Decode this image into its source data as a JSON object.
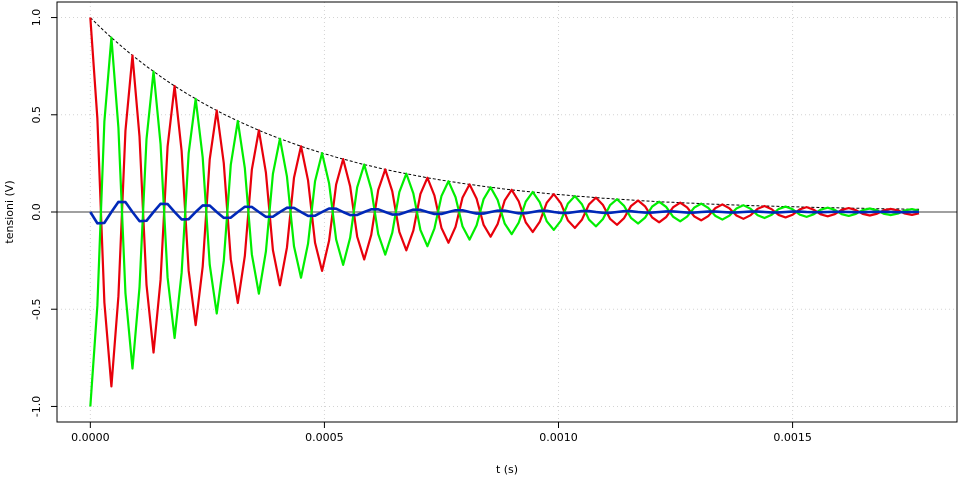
{
  "chart_data": {
    "type": "line",
    "xlabel": "t (s)",
    "ylabel": "tensioni (V)",
    "xlim": [
      -7.12e-05,
      0.0018512
    ],
    "ylim": [
      -1.08,
      1.08
    ],
    "xticks": [
      {
        "value": 0,
        "label": "0.0000"
      },
      0.0005,
      {
        "value": 0.001,
        "label": "0.0010"
      },
      0.0015
    ],
    "yticks": [
      {
        "value": -1,
        "label": "-1.0"
      },
      -0.5,
      {
        "value": 0,
        "label": "0.0"
      },
      0.5,
      {
        "value": 1,
        "label": "1.0"
      }
    ],
    "grid": true,
    "zero_line": true,
    "x": [
      0,
      1.5e-05,
      3e-05,
      4.5e-05,
      6e-05,
      7.5e-05,
      9e-05,
      0.000105,
      0.00012,
      0.000135,
      0.00015,
      0.000165,
      0.00018,
      0.000195,
      0.00021,
      0.000225,
      0.00024,
      0.000255,
      0.00027,
      0.000285,
      0.0003,
      0.000315,
      0.00033,
      0.000345,
      0.00036,
      0.000375,
      0.00039,
      0.000405,
      0.00042,
      0.000435,
      0.00045,
      0.000465,
      0.00048,
      0.000495,
      0.00051,
      0.000525,
      0.00054,
      0.000555,
      0.00057,
      0.000585,
      0.0006,
      0.000615,
      0.00063,
      0.000645,
      0.00066,
      0.000675,
      0.00069,
      0.000705,
      0.00072,
      0.000735,
      0.00075,
      0.000765,
      0.00078,
      0.000795,
      0.00081,
      0.000825,
      0.00084,
      0.000855,
      0.00087,
      0.000885,
      0.0009,
      0.000915,
      0.00093,
      0.000945,
      0.00096,
      0.000975,
      0.00099,
      0.001005,
      0.00102,
      0.001035,
      0.00105,
      0.001065,
      0.00108,
      0.001095,
      0.00111,
      0.001125,
      0.00114,
      0.001155,
      0.00117,
      0.001185,
      0.0012,
      0.001215,
      0.00123,
      0.001245,
      0.00126,
      0.001275,
      0.00129,
      0.001305,
      0.00132,
      0.001335,
      0.00135,
      0.001365,
      0.00138,
      0.001395,
      0.00141,
      0.001425,
      0.00144,
      0.001455,
      0.00147,
      0.001485,
      0.0015,
      0.001515,
      0.00153,
      0.001545,
      0.00156,
      0.001575,
      0.00159,
      0.001605,
      0.00162,
      0.001635,
      0.00165,
      0.001665,
      0.00168,
      0.001695,
      0.00171,
      0.001725,
      0.00174,
      0.001755,
      0.00177
    ],
    "series": [
      {
        "color": "#000000",
        "dash": true,
        "width": 1,
        "values": [
          1,
          0.9645,
          0.93,
          0.897,
          0.866,
          0.835,
          0.805,
          0.777,
          0.749,
          0.723,
          0.697,
          0.672,
          0.648,
          0.625,
          0.603,
          0.582,
          0.561,
          0.541,
          0.522,
          0.503,
          0.486,
          0.468,
          0.452,
          0.436,
          0.42,
          0.405,
          0.391,
          0.377,
          0.364,
          0.351,
          0.338,
          0.326,
          0.315,
          0.303,
          0.293,
          0.282,
          0.272,
          0.263,
          0.253,
          0.244,
          0.236,
          0.227,
          0.219,
          0.211,
          0.204,
          0.197,
          0.19,
          0.183,
          0.176,
          0.17,
          0.164,
          0.158,
          0.153,
          0.147,
          0.142,
          0.137,
          0.132,
          0.127,
          0.123,
          0.118,
          0.114,
          0.11,
          0.106,
          0.103,
          0.099,
          0.095,
          0.092,
          0.089,
          0.086,
          0.082,
          0.08,
          0.077,
          0.074,
          0.071,
          0.069,
          0.066,
          0.064,
          0.062,
          0.059,
          0.057,
          0.055,
          0.053,
          0.051,
          0.05,
          0.048,
          0.046,
          0.045,
          0.043,
          0.041,
          0.04,
          0.039,
          0.037,
          0.036,
          0.035,
          0.033,
          0.032,
          0.031,
          0.03,
          0.029,
          0.028,
          0.027,
          0.026,
          0.025,
          0.024,
          0.023,
          0.022,
          0.022,
          0.021,
          0.02,
          0.019,
          0.019,
          0.018,
          0.017,
          0.017,
          0.016,
          0.016,
          0.015,
          0.015,
          0.014
        ]
      },
      {
        "color": "#e8000b",
        "width": 2.2,
        "values": [
          1,
          0.482,
          -0.465,
          -0.897,
          -0.433,
          0.418,
          0.805,
          0.389,
          -0.375,
          -0.723,
          -0.349,
          0.336,
          0.648,
          0.313,
          -0.302,
          -0.582,
          -0.281,
          0.271,
          0.522,
          0.252,
          -0.243,
          -0.468,
          -0.226,
          0.218,
          0.42,
          0.203,
          -0.196,
          -0.377,
          -0.182,
          0.176,
          0.338,
          0.163,
          -0.158,
          -0.303,
          -0.147,
          0.141,
          0.272,
          0.132,
          -0.127,
          -0.244,
          -0.118,
          0.114,
          0.219,
          0.106,
          -0.102,
          -0.197,
          -0.095,
          0.092,
          0.176,
          0.085,
          -0.082,
          -0.158,
          -0.077,
          0.074,
          0.142,
          0.069,
          -0.066,
          -0.127,
          -0.062,
          0.059,
          0.114,
          0.055,
          -0.053,
          -0.103,
          -0.05,
          0.048,
          0.092,
          0.045,
          -0.043,
          -0.082,
          -0.04,
          0.039,
          0.074,
          0.036,
          -0.035,
          -0.066,
          -0.032,
          0.031,
          0.059,
          0.029,
          -0.028,
          -0.053,
          -0.026,
          0.025,
          0.048,
          0.023,
          -0.023,
          -0.043,
          -0.021,
          0.02,
          0.039,
          0.019,
          -0.018,
          -0.035,
          -0.017,
          0.016,
          0.031,
          0.015,
          -0.015,
          -0.028,
          -0.014,
          0.013,
          0.025,
          0.012,
          -0.012,
          -0.022,
          -0.011,
          0.011,
          0.02,
          0.01,
          -0.01,
          -0.018,
          -0.009,
          0.009,
          0.016,
          0.008,
          -0.008,
          -0.015,
          -0.007
        ]
      },
      {
        "color": "#00ee00",
        "width": 2.2,
        "values": [
          -1,
          -0.482,
          0.465,
          0.897,
          0.433,
          -0.418,
          -0.805,
          -0.389,
          0.375,
          0.723,
          0.349,
          -0.336,
          -0.648,
          -0.313,
          0.302,
          0.582,
          0.281,
          -0.271,
          -0.522,
          -0.252,
          0.243,
          0.468,
          0.226,
          -0.218,
          -0.42,
          -0.203,
          0.196,
          0.377,
          0.182,
          -0.176,
          -0.338,
          -0.163,
          0.158,
          0.303,
          0.147,
          -0.141,
          -0.272,
          -0.132,
          0.127,
          0.244,
          0.118,
          -0.114,
          -0.219,
          -0.106,
          0.102,
          0.197,
          0.095,
          -0.092,
          -0.176,
          -0.085,
          0.082,
          0.158,
          0.077,
          -0.074,
          -0.142,
          -0.069,
          0.066,
          0.127,
          0.062,
          -0.059,
          -0.114,
          -0.055,
          0.053,
          0.103,
          0.05,
          -0.048,
          -0.092,
          -0.045,
          0.043,
          0.082,
          0.04,
          -0.039,
          -0.074,
          -0.036,
          0.035,
          0.066,
          0.032,
          -0.031,
          -0.059,
          -0.029,
          0.028,
          0.053,
          0.026,
          -0.025,
          -0.048,
          -0.023,
          0.023,
          0.043,
          0.021,
          -0.02,
          -0.039,
          -0.019,
          0.018,
          0.035,
          0.017,
          -0.016,
          -0.031,
          -0.015,
          0.015,
          0.028,
          0.014,
          -0.013,
          -0.025,
          -0.012,
          0.012,
          0.022,
          0.011,
          -0.011,
          -0.02,
          -0.01,
          0.01,
          0.018,
          0.009,
          -0.009,
          -0.016,
          -0.008,
          0.008,
          0.015,
          0.007
        ]
      },
      {
        "color": "#0028b8",
        "width": 2.6,
        "values": [
          0,
          -0.058,
          -0.056,
          0,
          0.052,
          0.051,
          0,
          -0.047,
          -0.045,
          0,
          0.042,
          0.041,
          0,
          -0.038,
          -0.037,
          0,
          0.034,
          0.033,
          0,
          -0.03,
          -0.029,
          0,
          0.027,
          0.026,
          0,
          -0.025,
          -0.024,
          0,
          0.022,
          0.021,
          0,
          -0.02,
          -0.019,
          0,
          0.018,
          0.017,
          0,
          -0.016,
          -0.015,
          0,
          0.014,
          0.014,
          0,
          -0.013,
          -0.012,
          0,
          0.012,
          0.011,
          0,
          -0.01,
          -0.01,
          0,
          0.009,
          0.009,
          0,
          -0.008,
          -0.008,
          0,
          0.007,
          0.007,
          0,
          -0.007,
          -0.006,
          0,
          0.006,
          0.006,
          0,
          -0.005,
          -0.005,
          0,
          0.005,
          0.005,
          0,
          -0.004,
          -0.004,
          0,
          0.004,
          0.004,
          0,
          -0.003,
          -0.003,
          0,
          0.003,
          0.003,
          0,
          -0.003,
          -0.003,
          0,
          0.002,
          0.002,
          0,
          -0.002,
          -0.002,
          0,
          0.002,
          0.002,
          0,
          -0.002,
          -0.002,
          0,
          0.002,
          0.002,
          0,
          -0.001,
          -0.001,
          0,
          0.001,
          0.001,
          0,
          -0.001,
          -0.001,
          0,
          0.001,
          0.001,
          0,
          -0.001,
          -0.001,
          0,
          0.001
        ]
      }
    ]
  }
}
